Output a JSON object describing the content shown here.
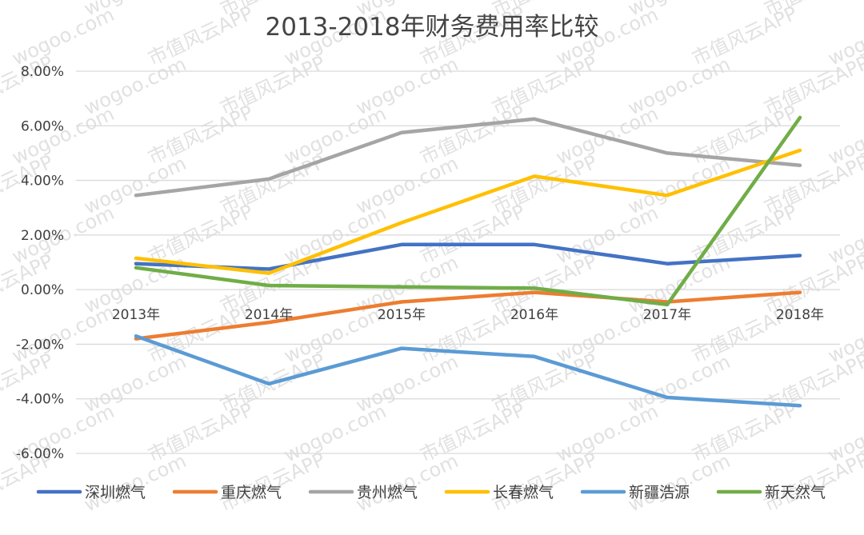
{
  "chart_data": {
    "type": "line",
    "title": "2013-2018年财务费用率比较",
    "categories": [
      "2013年",
      "2014年",
      "2015年",
      "2016年",
      "2017年",
      "2018年"
    ],
    "ylim": [
      -0.06,
      0.08
    ],
    "yticks": [
      0.08,
      0.06,
      0.04,
      0.02,
      0.0,
      -0.02,
      -0.04,
      -0.06
    ],
    "ytick_labels": [
      "8.00%",
      "6.00%",
      "4.00%",
      "2.00%",
      "0.00%",
      "-2.00%",
      "-4.00%",
      "-6.00%"
    ],
    "grid": true,
    "legend_position": "bottom",
    "series": [
      {
        "name": "深圳燃气",
        "color": "#4472c4",
        "values": [
          0.0095,
          0.0075,
          0.0165,
          0.0165,
          0.0095,
          0.0125
        ]
      },
      {
        "name": "重庆燃气",
        "color": "#ed7d31",
        "values": [
          -0.018,
          -0.012,
          -0.0045,
          -0.001,
          -0.0045,
          -0.001
        ]
      },
      {
        "name": "贵州燃气",
        "color": "#a5a5a5",
        "values": [
          0.0345,
          0.0405,
          0.0575,
          0.0625,
          0.05,
          0.0455
        ]
      },
      {
        "name": "长春燃气",
        "color": "#ffc000",
        "values": [
          0.0115,
          0.006,
          0.0245,
          0.0415,
          0.0345,
          0.051
        ]
      },
      {
        "name": "新疆浩源",
        "color": "#5b9bd5",
        "values": [
          -0.017,
          -0.0345,
          -0.0215,
          -0.0245,
          -0.0395,
          -0.0425
        ]
      },
      {
        "name": "新天然气",
        "color": "#70ad47",
        "values": [
          0.008,
          0.0015,
          0.001,
          0.0005,
          -0.0055,
          0.063
        ]
      }
    ]
  },
  "watermark": {
    "app_text": "市值风云APP",
    "site_text": "wogoo.com"
  }
}
